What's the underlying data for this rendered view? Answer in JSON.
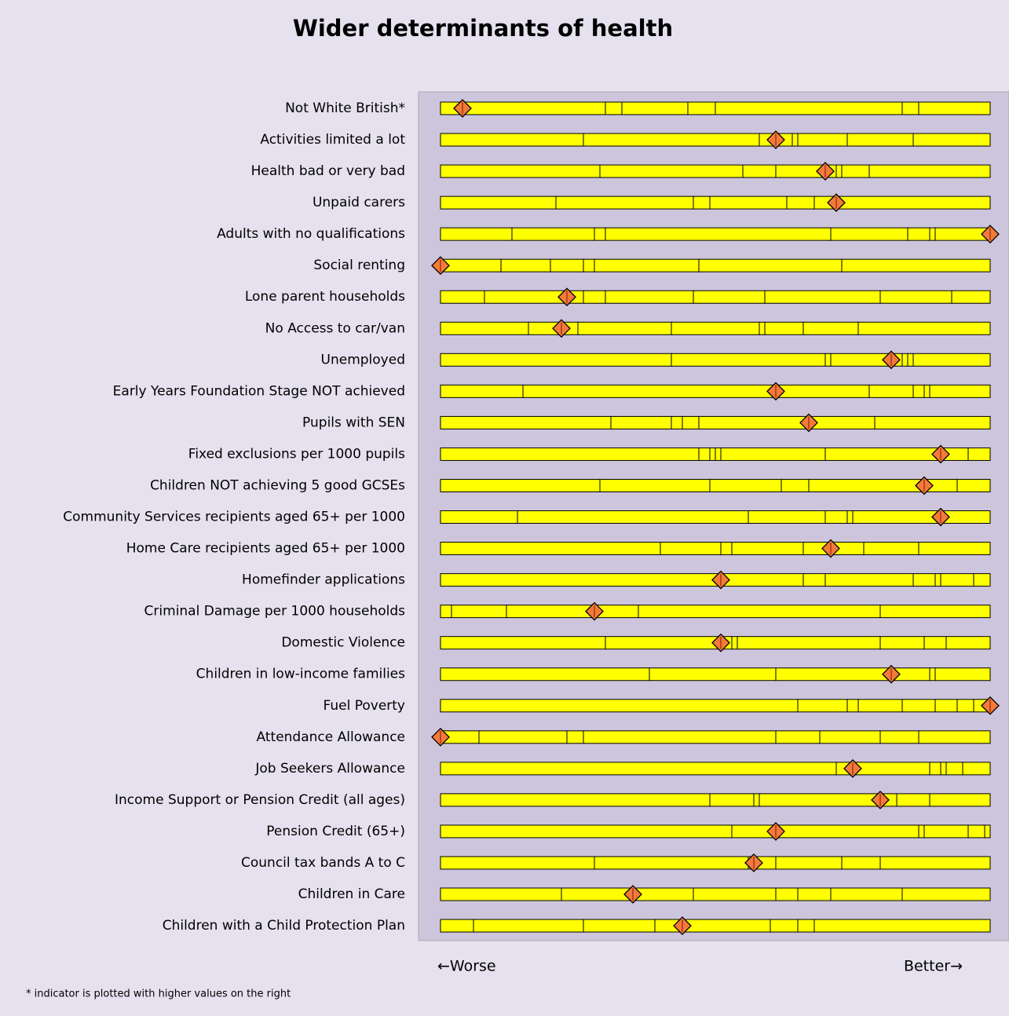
{
  "chart_data": {
    "type": "spine",
    "title": "Wider determinants of health",
    "categories": [
      "Not White British*",
      "Activities limited a lot",
      "Health bad or very bad",
      "Unpaid carers",
      "Adults with no qualifications",
      "Social renting",
      "Lone parent households",
      "No Access to car/van",
      "Unemployed",
      "Early Years Foundation Stage NOT achieved",
      "Pupils with SEN",
      "Fixed exclusions per 1000 pupils",
      "Children NOT achieving 5 good GCSEs",
      "Community Services recipients aged 65+ per 1000",
      "Home Care recipients aged 65+ per 1000",
      "Homefinder applications",
      "Criminal Damage per 1000 households",
      "Domestic Violence",
      "Children in low-income families",
      "Fuel Poverty",
      "Attendance Allowance",
      "Job Seekers Allowance",
      "Income Support or Pension Credit (all ages)",
      "Pension Credit (65+)",
      "Council tax bands A to C",
      "Children in Care",
      "Children with a Child Protection Plan"
    ],
    "segments": [
      [
        30,
        3,
        12,
        5,
        34,
        3,
        13
      ],
      [
        26,
        32,
        6,
        1,
        9,
        12,
        14
      ],
      [
        29,
        26,
        6,
        11,
        1,
        5,
        22
      ],
      [
        21,
        25,
        3,
        14,
        5,
        32
      ],
      [
        13,
        15,
        2,
        41,
        14,
        4,
        1,
        10
      ],
      [
        11,
        9,
        6,
        2,
        19,
        26,
        27
      ],
      [
        8,
        18,
        4,
        16,
        13,
        21,
        13,
        7
      ],
      [
        16,
        9,
        17,
        16,
        1,
        7,
        10,
        24
      ],
      [
        42,
        28,
        1,
        13,
        1,
        1,
        14
      ],
      [
        15,
        63,
        8,
        2,
        1,
        11
      ],
      [
        31,
        11,
        2,
        3,
        32,
        21
      ],
      [
        47,
        2,
        1,
        1,
        19,
        26,
        4
      ],
      [
        29,
        20,
        13,
        5,
        27,
        6
      ],
      [
        14,
        42,
        14,
        4,
        1,
        25
      ],
      [
        40,
        11,
        2,
        13,
        11,
        10,
        13
      ],
      [
        66,
        4,
        16,
        4,
        1,
        6,
        3
      ],
      [
        2,
        10,
        24,
        44,
        20
      ],
      [
        30,
        23,
        1,
        26,
        8,
        4,
        8
      ],
      [
        38,
        23,
        28,
        1,
        10
      ],
      [
        65,
        9,
        2,
        8,
        6,
        4,
        3,
        3
      ],
      [
        7,
        16,
        3,
        35,
        8,
        11,
        7,
        13
      ],
      [
        72,
        17,
        2,
        1,
        3,
        5
      ],
      [
        49,
        8,
        1,
        25,
        6,
        11
      ],
      [
        53,
        34,
        1,
        8,
        3,
        1
      ],
      [
        28,
        28,
        5,
        12,
        7,
        20
      ],
      [
        22,
        24,
        15,
        4,
        6,
        13,
        16
      ],
      [
        6,
        20,
        13,
        21,
        5,
        3,
        32
      ]
    ],
    "markers": [
      4,
      61,
      70,
      72,
      100,
      0,
      23,
      22,
      82,
      61,
      67,
      91,
      88,
      91,
      71,
      51,
      28,
      51,
      82,
      100,
      0,
      75,
      80,
      61,
      57,
      35,
      44
    ],
    "xlim": [
      0,
      100
    ],
    "segment_color": "#ffff00",
    "marker_color": "#f47a3a",
    "x_left_label": "←Worse",
    "x_right_label": "Better→",
    "footnote": "* indicator is plotted with higher values on the right"
  }
}
